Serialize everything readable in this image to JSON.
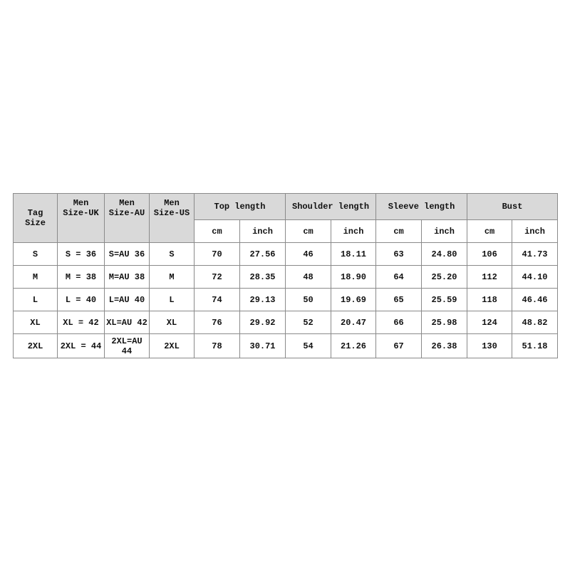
{
  "table": {
    "header": {
      "fixed": [
        "Tag Size",
        "Men Size-UK",
        "Men Size-AU",
        "Men Size-US"
      ],
      "groups": [
        {
          "name": "Top length",
          "units": [
            "cm",
            "inch"
          ]
        },
        {
          "name": "Shoulder length",
          "units": [
            "cm",
            "inch"
          ]
        },
        {
          "name": "Sleeve length",
          "units": [
            "cm",
            "inch"
          ]
        },
        {
          "name": "Bust",
          "units": [
            "cm",
            "inch"
          ]
        }
      ]
    },
    "rows": [
      [
        "S",
        "S = 36",
        "S=AU 36",
        "S",
        "70",
        "27.56",
        "46",
        "18.11",
        "63",
        "24.80",
        "106",
        "41.73"
      ],
      [
        "M",
        "M = 38",
        "M=AU 38",
        "M",
        "72",
        "28.35",
        "48",
        "18.90",
        "64",
        "25.20",
        "112",
        "44.10"
      ],
      [
        "L",
        "L = 40",
        "L=AU 40",
        "L",
        "74",
        "29.13",
        "50",
        "19.69",
        "65",
        "25.59",
        "118",
        "46.46"
      ],
      [
        "XL",
        "XL = 42",
        "XL=AU 42",
        "XL",
        "76",
        "29.92",
        "52",
        "20.47",
        "66",
        "25.98",
        "124",
        "48.82"
      ],
      [
        "2XL",
        "2XL = 44",
        "2XL=AU 44",
        "2XL",
        "78",
        "30.71",
        "54",
        "21.26",
        "67",
        "26.38",
        "130",
        "51.18"
      ]
    ]
  }
}
